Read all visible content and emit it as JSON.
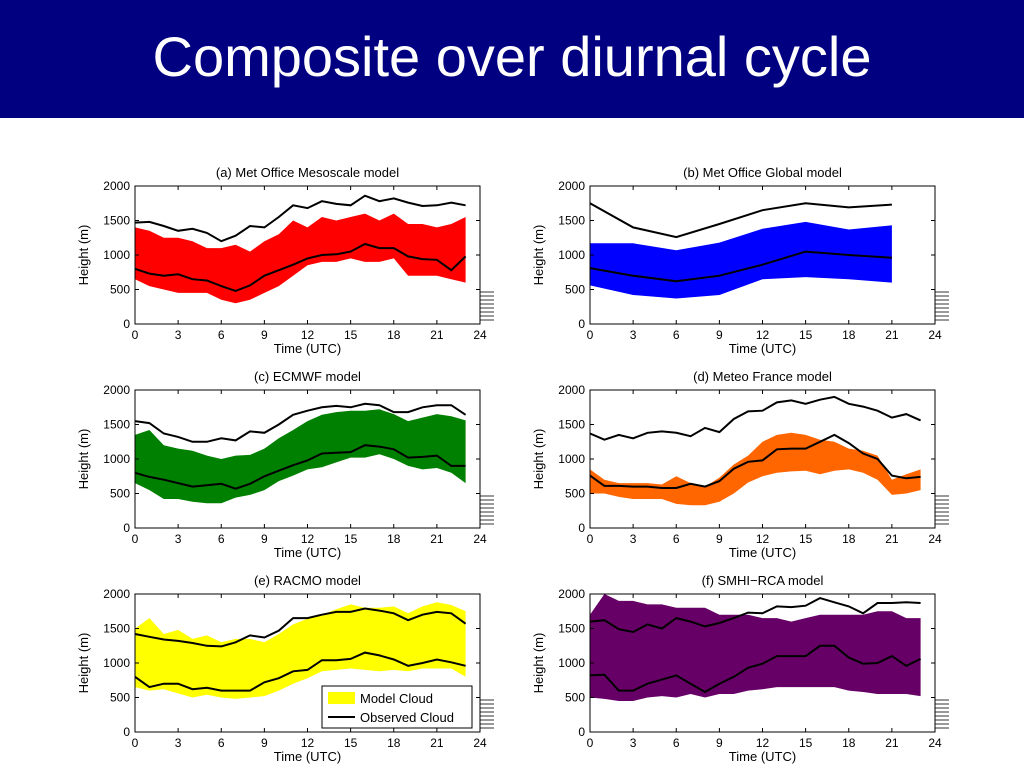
{
  "slide": {
    "title": "Composite over diurnal cycle"
  },
  "colors": {
    "title_bar": "#000080",
    "title_text": "#ffffff",
    "observed_line": "#000000"
  },
  "legend": {
    "model_label": "Model Cloud",
    "observed_label": "Observed Cloud",
    "swatch_color": "#ffff00"
  },
  "chart_data": [
    {
      "type": "area",
      "title": "(a) Met Office Mesoscale model",
      "xlabel": "Time (UTC)",
      "ylabel": "Height (m)",
      "xlim": [
        0,
        24
      ],
      "ylim": [
        0,
        2000
      ],
      "xticks": [
        0,
        3,
        6,
        9,
        12,
        15,
        18,
        21,
        24
      ],
      "yticks": [
        0,
        500,
        1000,
        1500,
        2000
      ],
      "x": [
        0,
        1,
        2,
        3,
        4,
        5,
        6,
        7,
        8,
        9,
        10,
        11,
        12,
        13,
        14,
        15,
        16,
        17,
        18,
        19,
        20,
        21,
        22,
        23
      ],
      "fill_color": "#ff0000",
      "band_top": [
        1400,
        1350,
        1250,
        1250,
        1200,
        1100,
        1100,
        1150,
        1050,
        1200,
        1300,
        1500,
        1400,
        1550,
        1500,
        1550,
        1600,
        1500,
        1600,
        1450,
        1450,
        1400,
        1450,
        1550
      ],
      "band_bottom": [
        650,
        550,
        500,
        450,
        450,
        450,
        350,
        300,
        350,
        450,
        550,
        700,
        850,
        900,
        900,
        950,
        900,
        900,
        950,
        700,
        700,
        700,
        650,
        600
      ],
      "obs_top": [
        1470,
        1480,
        1420,
        1350,
        1380,
        1320,
        1200,
        1280,
        1420,
        1400,
        1550,
        1720,
        1680,
        1780,
        1740,
        1720,
        1860,
        1780,
        1820,
        1760,
        1710,
        1720,
        1760,
        1720
      ],
      "obs_base": [
        800,
        730,
        700,
        720,
        650,
        630,
        550,
        480,
        560,
        700,
        780,
        860,
        950,
        1000,
        1010,
        1050,
        1160,
        1100,
        1100,
        980,
        940,
        930,
        780,
        980
      ],
      "legend": false
    },
    {
      "type": "area",
      "title": "(b) Met Office Global model",
      "xlabel": "Time (UTC)",
      "ylabel": "Height (m)",
      "xlim": [
        0,
        24
      ],
      "ylim": [
        0,
        2000
      ],
      "xticks": [
        0,
        3,
        6,
        9,
        12,
        15,
        18,
        21,
        24
      ],
      "yticks": [
        0,
        500,
        1000,
        1500,
        2000
      ],
      "x": [
        0,
        3,
        6,
        9,
        12,
        15,
        18,
        21
      ],
      "fill_color": "#0000ff",
      "band_top": [
        1170,
        1170,
        1070,
        1180,
        1380,
        1480,
        1370,
        1430
      ],
      "band_bottom": [
        560,
        420,
        370,
        420,
        650,
        680,
        650,
        600
      ],
      "obs_top": [
        1750,
        1400,
        1260,
        1450,
        1650,
        1750,
        1690,
        1730
      ],
      "obs_base": [
        810,
        700,
        620,
        700,
        860,
        1050,
        1000,
        960
      ],
      "legend": false
    },
    {
      "type": "area",
      "title": "(c) ECMWF model",
      "xlabel": "Time (UTC)",
      "ylabel": "Height (m)",
      "xlim": [
        0,
        24
      ],
      "ylim": [
        0,
        2000
      ],
      "xticks": [
        0,
        3,
        6,
        9,
        12,
        15,
        18,
        21,
        24
      ],
      "yticks": [
        0,
        500,
        1000,
        1500,
        2000
      ],
      "x": [
        0,
        1,
        2,
        3,
        4,
        5,
        6,
        7,
        8,
        9,
        10,
        11,
        12,
        13,
        14,
        15,
        16,
        17,
        18,
        19,
        20,
        21,
        22,
        23
      ],
      "fill_color": "#008000",
      "band_top": [
        1350,
        1420,
        1200,
        1150,
        1120,
        1050,
        1000,
        1050,
        1060,
        1150,
        1300,
        1420,
        1550,
        1640,
        1680,
        1700,
        1700,
        1720,
        1650,
        1550,
        1600,
        1650,
        1620,
        1560
      ],
      "band_bottom": [
        650,
        550,
        420,
        420,
        380,
        360,
        360,
        440,
        480,
        550,
        680,
        760,
        850,
        880,
        950,
        1020,
        1020,
        1070,
        1000,
        900,
        850,
        870,
        800,
        650
      ],
      "obs_top": [
        1550,
        1520,
        1370,
        1320,
        1250,
        1250,
        1300,
        1270,
        1400,
        1380,
        1500,
        1640,
        1700,
        1750,
        1770,
        1750,
        1800,
        1780,
        1680,
        1680,
        1750,
        1780,
        1780,
        1640
      ],
      "obs_base": [
        800,
        740,
        700,
        650,
        600,
        620,
        640,
        570,
        640,
        750,
        830,
        910,
        980,
        1080,
        1090,
        1100,
        1200,
        1180,
        1140,
        1020,
        1030,
        1050,
        900,
        900
      ],
      "legend": false
    },
    {
      "type": "area",
      "title": "(d) Meteo France model",
      "xlabel": "Time (UTC)",
      "ylabel": "Height (m)",
      "xlim": [
        0,
        24
      ],
      "ylim": [
        0,
        2000
      ],
      "xticks": [
        0,
        3,
        6,
        9,
        12,
        15,
        18,
        21,
        24
      ],
      "yticks": [
        0,
        500,
        1000,
        1500,
        2000
      ],
      "x": [
        0,
        1,
        2,
        3,
        4,
        5,
        6,
        7,
        8,
        9,
        10,
        11,
        12,
        13,
        14,
        15,
        16,
        17,
        18,
        19,
        20,
        21,
        22,
        23
      ],
      "fill_color": "#ff6600",
      "band_top": [
        850,
        700,
        650,
        650,
        650,
        630,
        750,
        650,
        600,
        730,
        920,
        1050,
        1250,
        1350,
        1380,
        1350,
        1280,
        1250,
        1150,
        1120,
        1050,
        700,
        780,
        850
      ],
      "band_bottom": [
        500,
        500,
        450,
        420,
        420,
        420,
        350,
        330,
        330,
        380,
        500,
        660,
        750,
        800,
        820,
        830,
        780,
        830,
        850,
        800,
        700,
        480,
        500,
        550
      ],
      "obs_top": [
        1370,
        1280,
        1350,
        1300,
        1380,
        1400,
        1380,
        1330,
        1450,
        1390,
        1580,
        1690,
        1700,
        1820,
        1850,
        1800,
        1860,
        1900,
        1800,
        1760,
        1700,
        1600,
        1650,
        1560
      ],
      "obs_base": [
        760,
        610,
        610,
        600,
        600,
        580,
        580,
        640,
        600,
        680,
        860,
        960,
        980,
        1140,
        1150,
        1150,
        1250,
        1350,
        1230,
        1080,
        1000,
        760,
        720,
        740
      ],
      "legend": false
    },
    {
      "type": "area",
      "title": "(e) RACMO model",
      "xlabel": "Time (UTC)",
      "ylabel": "Height (m)",
      "xlim": [
        0,
        24
      ],
      "ylim": [
        0,
        2000
      ],
      "xticks": [
        0,
        3,
        6,
        9,
        12,
        15,
        18,
        21,
        24
      ],
      "yticks": [
        0,
        500,
        1000,
        1500,
        2000
      ],
      "x": [
        0,
        1,
        2,
        3,
        4,
        5,
        6,
        7,
        8,
        9,
        10,
        11,
        12,
        13,
        14,
        15,
        16,
        17,
        18,
        19,
        20,
        21,
        22,
        23
      ],
      "fill_color": "#ffff00",
      "band_top": [
        1500,
        1650,
        1420,
        1480,
        1350,
        1400,
        1300,
        1350,
        1350,
        1300,
        1420,
        1560,
        1640,
        1700,
        1780,
        1850,
        1800,
        1800,
        1820,
        1720,
        1820,
        1880,
        1840,
        1750
      ],
      "band_bottom": [
        650,
        600,
        620,
        560,
        500,
        540,
        500,
        480,
        500,
        520,
        600,
        700,
        780,
        880,
        900,
        920,
        900,
        880,
        900,
        880,
        920,
        920,
        920,
        800
      ],
      "obs_top": [
        1420,
        1380,
        1340,
        1320,
        1290,
        1250,
        1240,
        1300,
        1400,
        1370,
        1470,
        1650,
        1650,
        1700,
        1740,
        1740,
        1790,
        1760,
        1720,
        1620,
        1700,
        1740,
        1720,
        1570
      ],
      "obs_base": [
        800,
        650,
        700,
        700,
        620,
        640,
        600,
        600,
        600,
        720,
        780,
        880,
        900,
        1040,
        1040,
        1060,
        1150,
        1110,
        1050,
        960,
        1000,
        1050,
        1010,
        960
      ],
      "legend": true
    },
    {
      "type": "area",
      "title": "(f) SMHI−RCA model",
      "xlabel": "Time (UTC)",
      "ylabel": "Height (m)",
      "xlim": [
        0,
        24
      ],
      "ylim": [
        0,
        2000
      ],
      "xticks": [
        0,
        3,
        6,
        9,
        12,
        15,
        18,
        21,
        24
      ],
      "yticks": [
        0,
        500,
        1000,
        1500,
        2000
      ],
      "x": [
        0,
        1,
        2,
        3,
        4,
        5,
        6,
        7,
        8,
        9,
        10,
        11,
        12,
        13,
        14,
        15,
        16,
        17,
        18,
        19,
        20,
        21,
        22,
        23
      ],
      "fill_color": "#660066",
      "band_top": [
        1700,
        2000,
        1900,
        1900,
        1850,
        1850,
        1800,
        1800,
        1800,
        1700,
        1700,
        1700,
        1650,
        1650,
        1600,
        1650,
        1700,
        1700,
        1700,
        1700,
        1750,
        1750,
        1650,
        1650
      ],
      "band_bottom": [
        500,
        480,
        450,
        450,
        500,
        520,
        500,
        550,
        500,
        550,
        550,
        600,
        620,
        650,
        650,
        650,
        650,
        650,
        600,
        580,
        550,
        550,
        550,
        520
      ],
      "obs_top": [
        1600,
        1620,
        1490,
        1450,
        1560,
        1500,
        1650,
        1600,
        1530,
        1580,
        1650,
        1730,
        1720,
        1820,
        1810,
        1830,
        1940,
        1880,
        1820,
        1720,
        1870,
        1870,
        1880,
        1870
      ],
      "obs_base": [
        820,
        830,
        600,
        600,
        700,
        760,
        820,
        700,
        580,
        700,
        800,
        930,
        990,
        1100,
        1100,
        1100,
        1250,
        1250,
        1080,
        990,
        1000,
        1100,
        960,
        1060
      ],
      "legend": false
    }
  ]
}
